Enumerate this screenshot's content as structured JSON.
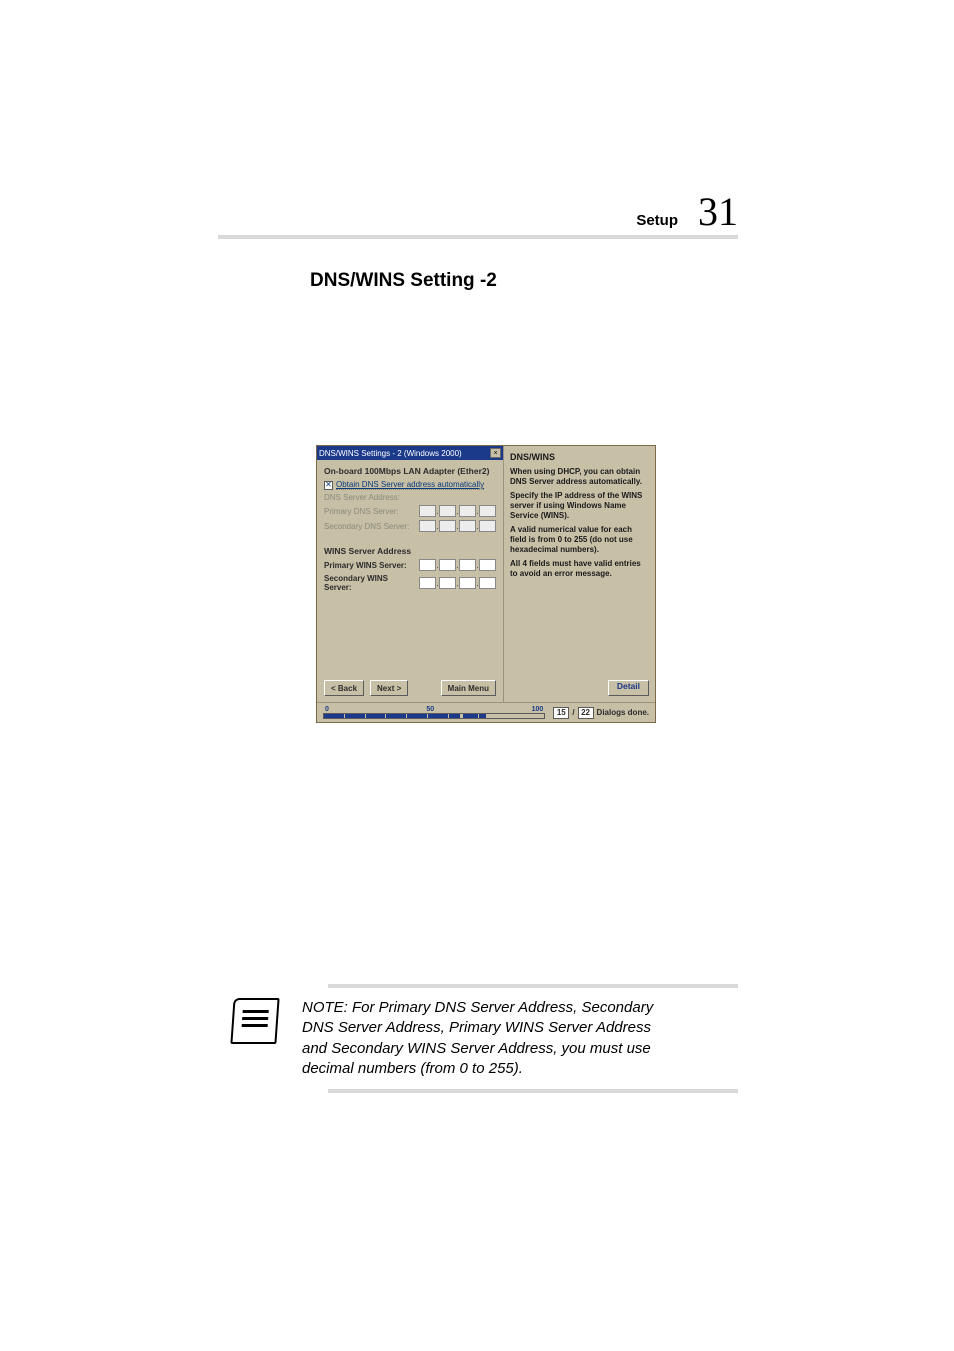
{
  "header": {
    "section": "Setup",
    "page_number": "31"
  },
  "section_title": "DNS/WINS Setting -2",
  "dialog": {
    "title": "DNS/WINS Settings - 2 (Windows 2000)",
    "adapter": "On-board 100Mbps LAN Adapter (Ether2)",
    "obtain_checkbox_label": "Obtain DNS Server address automatically",
    "obtain_checked_glyph": "✕",
    "dns_address_label": "DNS Server Address:",
    "primary_dns_label": "Primary DNS Server:",
    "secondary_dns_label": "Secondary DNS Server:",
    "wins_heading": "WINS Server Address",
    "primary_wins_label": "Primary WINS Server:",
    "secondary_wins_label": "Secondary WINS Server:",
    "buttons": {
      "back": "< Back",
      "next": "Next >",
      "main": "Main Menu"
    }
  },
  "help": {
    "title": "DNS/WINS",
    "p1": "When using DHCP, you can obtain DNS Server address automatically.",
    "p2": "Specify the IP address of the WINS server if using Windows Name Service (WINS).",
    "p3": "A valid numerical value for each field is from 0 to 255 (do not use hexadecimal numbers).",
    "p4": "All 4 fields must have valid entries to avoid an error message.",
    "detail_btn": "Detail"
  },
  "progress": {
    "ticks": [
      "0",
      "50",
      "100"
    ],
    "segment_widths_pct": [
      9,
      9,
      9,
      9,
      9,
      9,
      5,
      0,
      0,
      7,
      3
    ],
    "done": "15",
    "total": "22",
    "label": "Dialogs done."
  },
  "note": {
    "text": "NOTE: For Primary DNS Server Address, Secondary DNS Server Address, Primary WINS Server Address and Secondary WINS Server Address, you must use decimal numbers (from 0 to 255)."
  },
  "colors": {
    "rule": "#d9d9d9",
    "titlebar": "#1b3a8a",
    "panel": "#c7bfa6"
  }
}
